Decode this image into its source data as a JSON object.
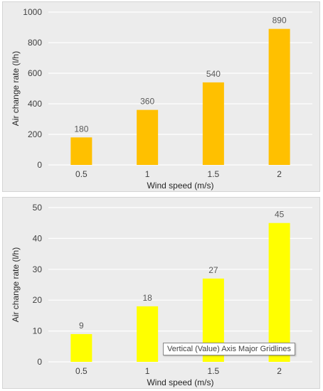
{
  "chart_data": [
    {
      "type": "bar",
      "categories": [
        "0.5",
        "1",
        "1.5",
        "2"
      ],
      "values": [
        180,
        360,
        540,
        890
      ],
      "data_labels": [
        "180",
        "360",
        "540",
        "890"
      ],
      "xlabel": "Wind speed (m/s)",
      "ylabel": "Air change rate (l/h)",
      "ylim": [
        0,
        1000
      ],
      "yticks": [
        "0",
        "200",
        "400",
        "600",
        "800",
        "1000"
      ],
      "grid": true,
      "bar_color": "#FFC000"
    },
    {
      "type": "bar",
      "categories": [
        "0.5",
        "1",
        "1.5",
        "2"
      ],
      "values": [
        9,
        18,
        27,
        45
      ],
      "data_labels": [
        "9",
        "18",
        "27",
        "45"
      ],
      "xlabel": "Wind speed (m/s)",
      "ylabel": "Air change rate (l/h)",
      "ylim": [
        0,
        50
      ],
      "yticks": [
        "0",
        "10",
        "20",
        "30",
        "40",
        "50"
      ],
      "grid": true,
      "bar_color": "#FFFF00"
    }
  ],
  "tooltip": {
    "text": "Vertical (Value) Axis Major Gridlines"
  }
}
